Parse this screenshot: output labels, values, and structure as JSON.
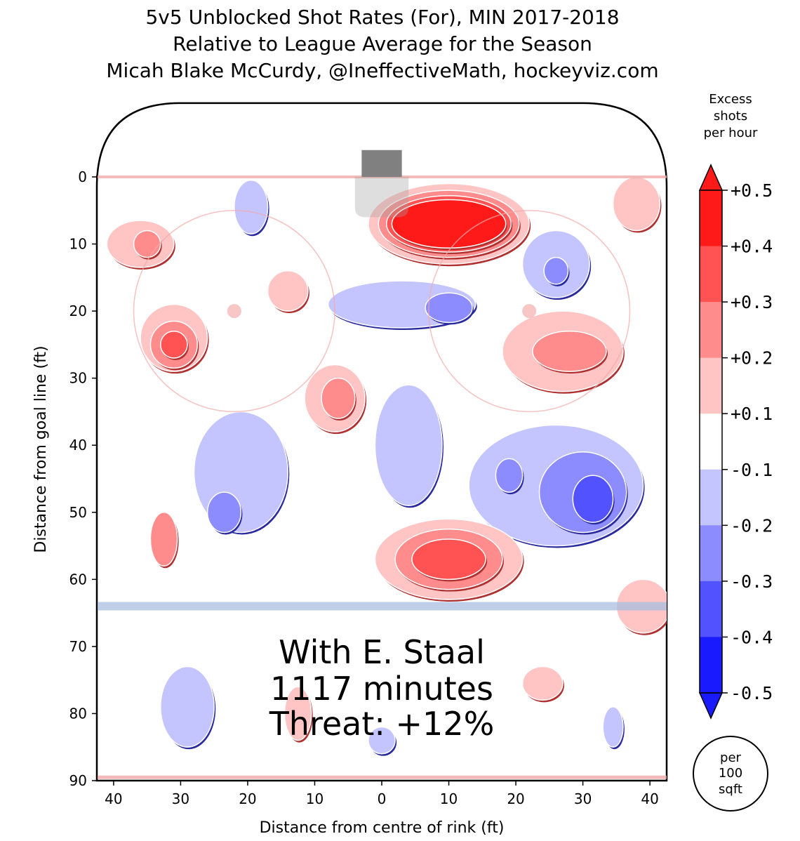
{
  "chart_data": {
    "type": "heatmap",
    "title_lines": [
      "5v5 Unblocked Shot Rates (For), MIN 2017-2018",
      "Relative to League Average for the Season",
      "Micah Blake McCurdy, @IneffectiveMath, hockeyviz.com"
    ],
    "xlabel": "Distance from centre of rink (ft)",
    "ylabel": "Distance from goal line (ft)",
    "x_ticks": [
      {
        "v": -40,
        "label": "40"
      },
      {
        "v": -30,
        "label": "30"
      },
      {
        "v": -20,
        "label": "20"
      },
      {
        "v": -10,
        "label": "10"
      },
      {
        "v": 0,
        "label": "0"
      },
      {
        "v": 10,
        "label": "10"
      },
      {
        "v": 20,
        "label": "20"
      },
      {
        "v": 30,
        "label": "30"
      },
      {
        "v": 40,
        "label": "40"
      }
    ],
    "y_ticks": [
      {
        "v": 0,
        "label": "0"
      },
      {
        "v": 10,
        "label": "10"
      },
      {
        "v": 20,
        "label": "20"
      },
      {
        "v": 30,
        "label": "30"
      },
      {
        "v": 40,
        "label": "40"
      },
      {
        "v": 50,
        "label": "50"
      },
      {
        "v": 60,
        "label": "60"
      },
      {
        "v": 70,
        "label": "70"
      },
      {
        "v": 80,
        "label": "80"
      },
      {
        "v": 90,
        "label": "90"
      }
    ],
    "xlim": [
      -42.5,
      42.5
    ],
    "ylim": [
      0,
      90
    ],
    "colorbar": {
      "title": [
        "Excess",
        "shots",
        "per hour"
      ],
      "labels": [
        "+0.5",
        "+0.4",
        "+0.3",
        "+0.2",
        "+0.1",
        "-0.1",
        "-0.2",
        "-0.3",
        "-0.4",
        "-0.5"
      ],
      "colors": [
        "#ff1a1a",
        "#ff5252",
        "#ff8c8c",
        "#ffc4c4",
        "#ffffff",
        "#c4c4ff",
        "#8c8cff",
        "#5252ff",
        "#1a1aff"
      ]
    },
    "unit_badge": [
      "per",
      "100",
      "sqft"
    ],
    "annotation": [
      "With E. Staal",
      "1117 minutes",
      "Threat: +12%"
    ],
    "regions": [
      {
        "level": 0.2,
        "x": 10,
        "y": 7,
        "rx": 12,
        "ry": 6
      },
      {
        "level": 0.3,
        "x": 10,
        "y": 7,
        "rx": 10.5,
        "ry": 5
      },
      {
        "level": 0.4,
        "x": 10,
        "y": 7,
        "rx": 9.3,
        "ry": 4.2
      },
      {
        "level": 0.5,
        "x": 10,
        "y": 7,
        "rx": 8.5,
        "ry": 3.6
      },
      {
        "level": 0.2,
        "x": -36,
        "y": 10,
        "rx": 5,
        "ry": 3.5
      },
      {
        "level": 0.3,
        "x": -35,
        "y": 10,
        "rx": 2,
        "ry": 2
      },
      {
        "level": -0.2,
        "x": -19.5,
        "y": 4.5,
        "rx": 2.5,
        "ry": 4
      },
      {
        "level": 0.2,
        "x": 38,
        "y": 4,
        "rx": 3.5,
        "ry": 4
      },
      {
        "level": 0.2,
        "x": -31,
        "y": 24,
        "rx": 5,
        "ry": 5
      },
      {
        "level": 0.3,
        "x": -31,
        "y": 25,
        "rx": 3.5,
        "ry": 3.5
      },
      {
        "level": 0.4,
        "x": -31,
        "y": 25,
        "rx": 2,
        "ry": 2
      },
      {
        "level": 0.2,
        "x": -14,
        "y": 17,
        "rx": 3,
        "ry": 3
      },
      {
        "level": -0.2,
        "x": 3,
        "y": 19,
        "rx": 11,
        "ry": 3.5
      },
      {
        "level": -0.3,
        "x": 10,
        "y": 19.5,
        "rx": 3.5,
        "ry": 2.2
      },
      {
        "level": -0.2,
        "x": 26,
        "y": 13,
        "rx": 5,
        "ry": 5
      },
      {
        "level": -0.3,
        "x": 26,
        "y": 14,
        "rx": 1.8,
        "ry": 2
      },
      {
        "level": 0.2,
        "x": 27,
        "y": 26,
        "rx": 9,
        "ry": 6
      },
      {
        "level": 0.3,
        "x": 28,
        "y": 26,
        "rx": 5.5,
        "ry": 3
      },
      {
        "level": -0.2,
        "x": -21,
        "y": 44,
        "rx": 7,
        "ry": 9
      },
      {
        "level": -0.3,
        "x": -23.5,
        "y": 50,
        "rx": 2.5,
        "ry": 3
      },
      {
        "level": 0.2,
        "x": -7,
        "y": 33,
        "rx": 4.5,
        "ry": 5
      },
      {
        "level": 0.3,
        "x": -6.5,
        "y": 33,
        "rx": 2.5,
        "ry": 3
      },
      {
        "level": -0.2,
        "x": 4,
        "y": 40,
        "rx": 5,
        "ry": 9
      },
      {
        "level": -0.2,
        "x": 26,
        "y": 46,
        "rx": 13,
        "ry": 9
      },
      {
        "level": -0.3,
        "x": 30,
        "y": 47,
        "rx": 6.5,
        "ry": 6
      },
      {
        "level": -0.4,
        "x": 31.5,
        "y": 48,
        "rx": 3,
        "ry": 3.5
      },
      {
        "level": -0.3,
        "x": 19,
        "y": 44.5,
        "rx": 2,
        "ry": 2.5
      },
      {
        "level": 0.2,
        "x": 10,
        "y": 57,
        "rx": 11,
        "ry": 6
      },
      {
        "level": 0.3,
        "x": 10,
        "y": 57,
        "rx": 8,
        "ry": 4.5
      },
      {
        "level": 0.4,
        "x": 10,
        "y": 57,
        "rx": 5.5,
        "ry": 3
      },
      {
        "level": 0.3,
        "x": -32.5,
        "y": 54,
        "rx": 2,
        "ry": 4
      },
      {
        "level": 0.2,
        "x": 39,
        "y": 64,
        "rx": 4,
        "ry": 4
      },
      {
        "level": -0.2,
        "x": -29,
        "y": 79,
        "rx": 4,
        "ry": 6
      },
      {
        "level": 0.2,
        "x": 24,
        "y": 75.5,
        "rx": 3,
        "ry": 2.5
      },
      {
        "level": 0.2,
        "x": -12.5,
        "y": 80,
        "rx": 2,
        "ry": 4
      },
      {
        "level": -0.2,
        "x": 34.5,
        "y": 82,
        "rx": 1.5,
        "ry": 3
      },
      {
        "level": -0.2,
        "x": 0,
        "y": 84,
        "rx": 2,
        "ry": 2
      }
    ]
  }
}
